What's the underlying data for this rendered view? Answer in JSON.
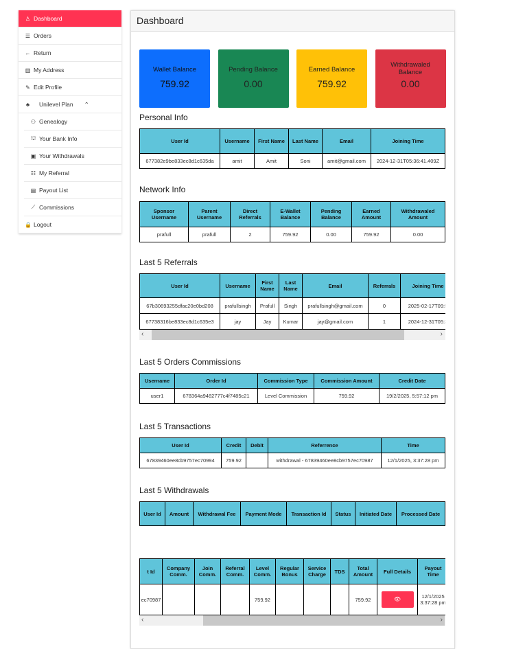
{
  "sidebar": {
    "items": [
      {
        "label": "Dashboard",
        "icon": "user-icon"
      },
      {
        "label": "Orders",
        "icon": "list-icon"
      },
      {
        "label": "Return",
        "icon": "arrow-left-icon"
      },
      {
        "label": "My Address",
        "icon": "map-icon"
      },
      {
        "label": "Edit Profile",
        "icon": "pencil-icon"
      },
      {
        "label": "Unilevel Plan",
        "icon": "sitemap-icon"
      },
      {
        "label": "Genealogy",
        "icon": "user-gear-icon"
      },
      {
        "label": "Your Bank Info",
        "icon": "bank-icon"
      },
      {
        "label": "Your Withdrawals",
        "icon": "wallet-icon"
      },
      {
        "label": "My Referral",
        "icon": "user-list-icon"
      },
      {
        "label": "Payout List",
        "icon": "document-icon"
      },
      {
        "label": "Commissions",
        "icon": "chart-icon"
      },
      {
        "label": "Logout",
        "icon": "lock-icon"
      }
    ]
  },
  "header": {
    "title": "Dashboard"
  },
  "cards": [
    {
      "label": "Wallet Balance",
      "value": "759.92",
      "color": "#0d6efd"
    },
    {
      "label": "Pending Balance",
      "value": "0.00",
      "color": "#198754"
    },
    {
      "label": "Earned Balance",
      "value": "759.92",
      "color": "#ffc107"
    },
    {
      "label": "Withdrawaled Balance",
      "value": "0.00",
      "color": "#dc3545"
    }
  ],
  "personal": {
    "title": "Personal Info",
    "headers": [
      "User Id",
      "Username",
      "First Name",
      "Last Name",
      "Email",
      "Joining Time"
    ],
    "rows": [
      [
        "677382e9be833ec8d1c635da",
        "amit",
        "Amit",
        "Soni",
        "amit@gmail.com",
        "2024-12-31T05:36:41.409Z"
      ]
    ]
  },
  "network": {
    "title": "Network Info",
    "headers": [
      "Sponsor Username",
      "Parent Username",
      "Direct Referrals",
      "E-Wallet Balance",
      "Pending Balance",
      "Earned Amount",
      "Withdrawaled Amount"
    ],
    "rows": [
      [
        "prafull",
        "prafull",
        "2",
        "759.92",
        "0.00",
        "759.92",
        "0.00"
      ]
    ]
  },
  "referrals": {
    "title": "Last 5 Referrals",
    "headers": [
      "User Id",
      "Username",
      "First Name",
      "Last Name",
      "Email",
      "Referrals",
      "Joining Time"
    ],
    "rows": [
      [
        "67b30693255dfac20e0bd208",
        "prafullsingh",
        "Prafull",
        "Singh",
        "prafullsingh@gmail.com",
        "0",
        "2025-02-17T09:5"
      ],
      [
        "67738316be833ec8d1c635e3",
        "jay",
        "Jay",
        "Kumar",
        "jay@gmail.com",
        "1",
        "2024-12-31T05:3"
      ]
    ]
  },
  "commissions": {
    "title": "Last 5 Orders Commissions",
    "headers": [
      "Username",
      "Order Id",
      "Commission Type",
      "Commission Amount",
      "Credit Date"
    ],
    "rows": [
      [
        "user1",
        "678364a9482777c4f7485c21",
        "Level Commission",
        "759.92",
        "19/2/2025, 5:57:12 pm"
      ]
    ]
  },
  "transactions": {
    "title": "Last 5 Transactions",
    "headers": [
      "User Id",
      "Credit",
      "Debit",
      "Referrence",
      "Time"
    ],
    "rows": [
      [
        "67839460ee8cb9757ec70994",
        "759.92",
        "",
        "withdrawal - 67839460ee8cb9757ec70987",
        "12/1/2025, 3:37:28 pm"
      ]
    ]
  },
  "withdrawals": {
    "title": "Last 5 Withdrawals",
    "headers": [
      "User Id",
      "Amount",
      "Withdrawal Fee",
      "Payment Mode",
      "Transaction Id",
      "Status",
      "Initiated Date",
      "Processed Date"
    ],
    "rows": []
  },
  "payouts": {
    "headers": [
      "t Id",
      "Company Comm.",
      "Join Comm.",
      "Referral Comm.",
      "Level Comm.",
      "Regular Bonus",
      "Service Charge",
      "TDS",
      "Total Amount",
      "Full Details",
      "Payout Time"
    ],
    "rows": [
      [
        "ec70987",
        "",
        "",
        "",
        "759.92",
        "",
        "",
        "",
        "759.92",
        "",
        "12/1/2025 3:37:28 pm"
      ]
    ],
    "details_icon": "eye-icon"
  }
}
